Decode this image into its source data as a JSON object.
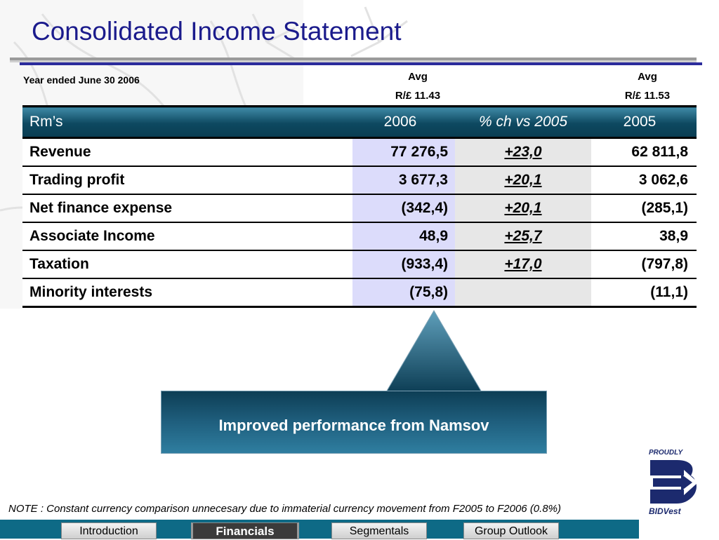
{
  "title": "Consolidated Income Statement",
  "year_label": "Year ended June 30 2006",
  "avg_2006": {
    "line1": "Avg",
    "line2": "R/£ 11.43"
  },
  "avg_2005": {
    "line1": "Avg",
    "line2": "R/£ 11.53"
  },
  "table": {
    "headers": [
      "Rm’s",
      "2006",
      "% ch vs  2005",
      "2005"
    ],
    "rows": [
      [
        "Revenue",
        "77 276,5",
        "+23,0",
        "62 811,8"
      ],
      [
        "Trading profit",
        "3 677,3",
        "+20,1",
        "3 062,6"
      ],
      [
        "Net finance expense",
        "(342,4)",
        "+20,1",
        "(285,1)"
      ],
      [
        "Associate Income",
        "48,9",
        "+25,7",
        "38,9"
      ],
      [
        "Taxation",
        "(933,4)",
        "+17,0",
        "(797,8)"
      ],
      [
        "Minority interests",
        "(75,8)",
        "",
        "(11,1)"
      ]
    ]
  },
  "callout": "Improved performance from Namsov",
  "note": "NOTE : Constant currency comparison unnecesary due to immaterial currency movement from F2005 to F2006 (0.8%)",
  "nav": {
    "items": [
      "Introduction",
      "Financials",
      "Segmentals",
      "Group Outlook"
    ],
    "active": "Financials"
  },
  "logo": {
    "top": "PROUDLY",
    "bottom": "BIDVest"
  },
  "colors": {
    "title": "#1b1b8c",
    "header": "#0d4860",
    "col2006": "#dcdcfb",
    "footer": "#0e6a86"
  }
}
